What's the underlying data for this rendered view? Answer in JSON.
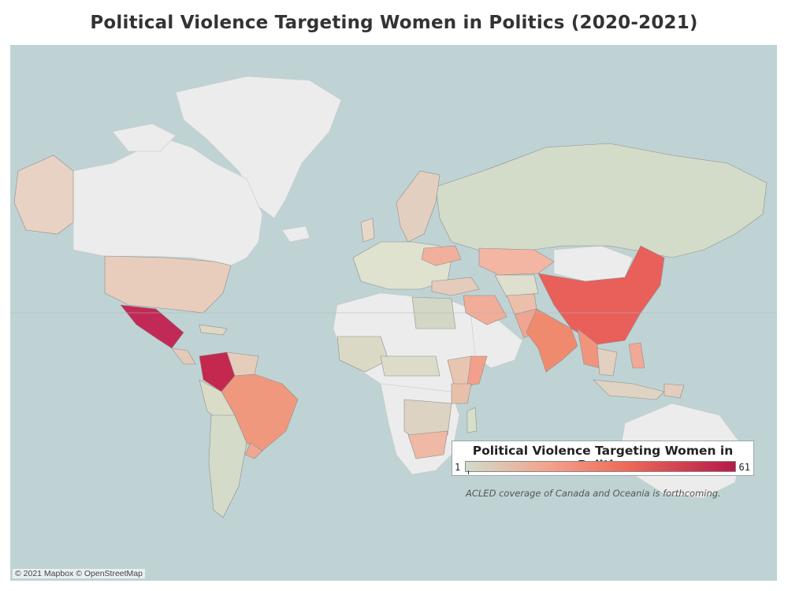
{
  "title": "Political Violence Targeting Women in Politics (2020-2021)",
  "legend": {
    "title": "Political Violence Targeting Women in Politics",
    "min": "1",
    "max": "61",
    "color_low": "#cfdcc9",
    "color_mid": "#f3a48f",
    "color_high": "#b5194a"
  },
  "note": "ACLED coverage of Canada and Oceania is forthcoming.",
  "attribution": "© 2021 Mapbox © OpenStreetMap",
  "colors": {
    "ocean": "#bfd3d4",
    "land_no_data": "#ececec"
  },
  "map_data": {
    "Mexico": 57,
    "Colombia": 59,
    "China": 42,
    "India": 37,
    "Brazil": 30,
    "Myanmar": 28,
    "Russia": 3,
    "Kazakhstan": 16,
    "United States": 12,
    "Alaska (US)": 10,
    "Argentina": 4,
    "Pakistan": 22,
    "Afghanistan": 8,
    "Philippines": 18,
    "Ukraine": 17,
    "Iraq": 14,
    "South Africa": 12,
    "Somalia": 20,
    "Kenya": 15,
    "Uruguay": 14,
    "Indonesia": 6,
    "Turkey": 10
  }
}
